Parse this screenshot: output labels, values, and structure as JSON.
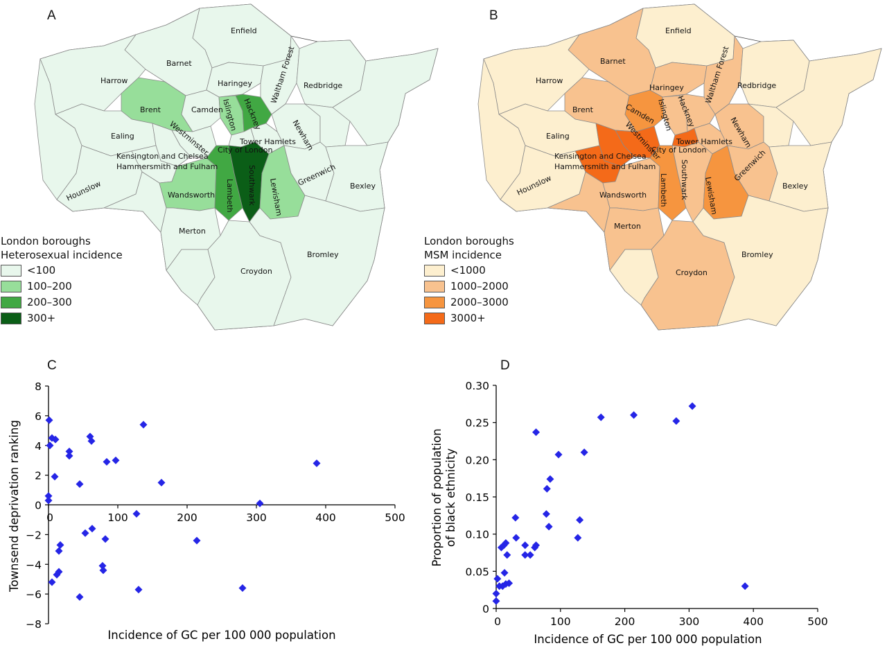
{
  "panels": {
    "a": "A",
    "b": "B",
    "c": "C",
    "d": "D"
  },
  "map_labels": {
    "enfield": "Enfield",
    "barnet": "Barnet",
    "harrow": "Harrow",
    "haringey": "Haringey",
    "waltham": "Waltham Forest",
    "redbridge": "Redbridge",
    "brent": "Brent",
    "camden": "Camden",
    "islington": "Islington",
    "hackney": "Hackney",
    "newham": "Newham",
    "ealing": "Ealing",
    "westminster": "Westminster",
    "tower": "Tower Hamlets",
    "city": "City of London",
    "kensington": "Kensington and Chelsea",
    "hammersmith": "Hammersmith and Fulham",
    "hounslow": "Hounslow",
    "wandsworth": "Wandsworth",
    "lambeth": "Lambeth",
    "southwark": "Southwark",
    "lewisham": "Lewisham",
    "greenwich": "Greenwich",
    "bexley": "Bexley",
    "merton": "Merton",
    "croydon": "Croydon",
    "bromley": "Bromley"
  },
  "legend_a": {
    "title1": "London boroughs",
    "title2": "Heterosexual incidence",
    "items": [
      {
        "label": "<100",
        "color": "#e8f7ec"
      },
      {
        "label": "100–200",
        "color": "#97de9a"
      },
      {
        "label": "200–300",
        "color": "#41a843"
      },
      {
        "label": "300+",
        "color": "#0b5e17"
      }
    ]
  },
  "legend_b": {
    "title1": "London boroughs",
    "title2": "MSM incidence",
    "items": [
      {
        "label": "<1000",
        "color": "#fdefcf"
      },
      {
        "label": "1000–2000",
        "color": "#f8c28f"
      },
      {
        "label": "2000–3000",
        "color": "#f6953f"
      },
      {
        "label": "3000+",
        "color": "#f46a19"
      }
    ]
  },
  "chart_data": [
    {
      "type": "scatter",
      "title": "",
      "xlabel": "Incidence of GC per 100 000 population",
      "ylabel": "Townsend deprivation ranking",
      "xlim": [
        0,
        500
      ],
      "ylim": [
        -8,
        8
      ],
      "xticks": [
        "0",
        "100",
        "200",
        "300",
        "400",
        "500"
      ],
      "yticks": [
        "8",
        "6",
        "4",
        "2",
        "0",
        "−2",
        "−4",
        "−6",
        "−8"
      ],
      "marker_color": "#2525e6",
      "points": [
        {
          "x": 0,
          "y": 0.6
        },
        {
          "x": 0,
          "y": 0.3
        },
        {
          "x": 1,
          "y": 5.7
        },
        {
          "x": 2,
          "y": 4.0
        },
        {
          "x": 5,
          "y": 4.5
        },
        {
          "x": 5,
          "y": -5.2
        },
        {
          "x": 9,
          "y": 1.9
        },
        {
          "x": 10,
          "y": 4.4
        },
        {
          "x": 12,
          "y": -4.7
        },
        {
          "x": 15,
          "y": -4.5
        },
        {
          "x": 15,
          "y": -3.1
        },
        {
          "x": 17,
          "y": -2.7
        },
        {
          "x": 30,
          "y": 3.6
        },
        {
          "x": 30,
          "y": 3.3
        },
        {
          "x": 45,
          "y": 1.4
        },
        {
          "x": 45,
          "y": -6.2
        },
        {
          "x": 53,
          "y": -1.9
        },
        {
          "x": 60,
          "y": 4.6
        },
        {
          "x": 62,
          "y": 4.3
        },
        {
          "x": 63,
          "y": -1.6
        },
        {
          "x": 78,
          "y": -4.1
        },
        {
          "x": 79,
          "y": -4.4
        },
        {
          "x": 82,
          "y": -2.3
        },
        {
          "x": 84,
          "y": 2.9
        },
        {
          "x": 97,
          "y": 3.0
        },
        {
          "x": 127,
          "y": -0.6
        },
        {
          "x": 130,
          "y": -5.7
        },
        {
          "x": 137,
          "y": 5.4
        },
        {
          "x": 163,
          "y": 1.5
        },
        {
          "x": 214,
          "y": -2.4
        },
        {
          "x": 280,
          "y": -5.6
        },
        {
          "x": 305,
          "y": 0.1
        },
        {
          "x": 387,
          "y": 2.8
        }
      ]
    },
    {
      "type": "scatter",
      "title": "",
      "xlabel": "Incidence of GC per 100 000 population",
      "ylabel": "Proportion of population of black ethnicity",
      "ylabel_lines": [
        "Proportion of population",
        "of black ethnicity"
      ],
      "xlim": [
        0,
        500
      ],
      "ylim": [
        0,
        0.3
      ],
      "xticks": [
        "0",
        "100",
        "200",
        "300",
        "400",
        "500"
      ],
      "yticks": [
        "0.30",
        "0.25",
        "0.20",
        "0.15",
        "0.10",
        "0.05",
        "0"
      ],
      "marker_color": "#2525e6",
      "points": [
        {
          "x": 0,
          "y": 0.01
        },
        {
          "x": 0,
          "y": 0.02
        },
        {
          "x": 2,
          "y": 0.04
        },
        {
          "x": 5,
          "y": 0.03
        },
        {
          "x": 8,
          "y": 0.082
        },
        {
          "x": 10,
          "y": 0.03
        },
        {
          "x": 12,
          "y": 0.085
        },
        {
          "x": 13,
          "y": 0.048
        },
        {
          "x": 15,
          "y": 0.088
        },
        {
          "x": 15,
          "y": 0.033
        },
        {
          "x": 17,
          "y": 0.072
        },
        {
          "x": 20,
          "y": 0.034
        },
        {
          "x": 30,
          "y": 0.122
        },
        {
          "x": 31,
          "y": 0.095
        },
        {
          "x": 45,
          "y": 0.085
        },
        {
          "x": 45,
          "y": 0.072
        },
        {
          "x": 53,
          "y": 0.072
        },
        {
          "x": 60,
          "y": 0.082
        },
        {
          "x": 62,
          "y": 0.085
        },
        {
          "x": 62,
          "y": 0.237
        },
        {
          "x": 78,
          "y": 0.127
        },
        {
          "x": 79,
          "y": 0.161
        },
        {
          "x": 82,
          "y": 0.11
        },
        {
          "x": 84,
          "y": 0.174
        },
        {
          "x": 97,
          "y": 0.207
        },
        {
          "x": 127,
          "y": 0.095
        },
        {
          "x": 130,
          "y": 0.119
        },
        {
          "x": 137,
          "y": 0.21
        },
        {
          "x": 163,
          "y": 0.257
        },
        {
          "x": 214,
          "y": 0.26
        },
        {
          "x": 280,
          "y": 0.252
        },
        {
          "x": 305,
          "y": 0.272
        },
        {
          "x": 387,
          "y": 0.03
        }
      ]
    }
  ]
}
